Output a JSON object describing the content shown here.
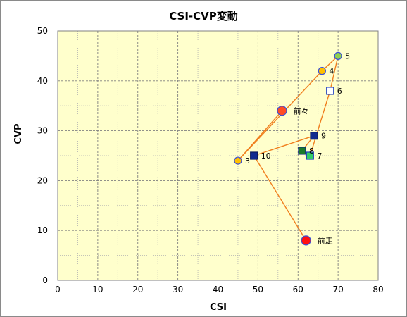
{
  "chart_data": {
    "type": "scatter",
    "title": "CSI-CVP変動",
    "xlabel": "CSI",
    "ylabel": "CVP",
    "xlim": [
      0,
      80
    ],
    "ylim": [
      0,
      50
    ],
    "xticks": [
      0,
      10,
      20,
      30,
      40,
      50,
      60,
      70,
      80
    ],
    "yticks": [
      0,
      10,
      20,
      30,
      40,
      50
    ],
    "grid": true,
    "plot_background": "#ffffcc",
    "grid_color": "#808080",
    "line_color": "#f07f1e",
    "points": [
      {
        "label": "前々",
        "x": 56,
        "y": 34,
        "marker": "circle",
        "fill": "#ff4d24",
        "stroke": "#3a4fd6"
      },
      {
        "label": "3",
        "x": 45,
        "y": 24,
        "marker": "circle",
        "fill": "#ffc000",
        "stroke": "#3a4fd6"
      },
      {
        "label": "4",
        "x": 66,
        "y": 42,
        "marker": "circle",
        "fill": "#ffc000",
        "stroke": "#3a4fd6"
      },
      {
        "label": "5",
        "x": 70,
        "y": 45,
        "marker": "circle",
        "fill": "#92d050",
        "stroke": "#3a4fd6"
      },
      {
        "label": "6",
        "x": 68,
        "y": 38,
        "marker": "square",
        "fill": "#ffffff",
        "stroke": "#1f3fbf"
      },
      {
        "label": "7",
        "x": 63,
        "y": 25,
        "marker": "square",
        "fill": "#33cc66",
        "stroke": "#1f3fbf"
      },
      {
        "label": "8",
        "x": 61,
        "y": 26,
        "marker": "square",
        "fill": "#1a7a2a",
        "stroke": "#0d2a80"
      },
      {
        "label": "9",
        "x": 64,
        "y": 29,
        "marker": "square",
        "fill": "#102a8f",
        "stroke": "#0a1a5c"
      },
      {
        "label": "10",
        "x": 49,
        "y": 25,
        "marker": "square",
        "fill": "#102a8f",
        "stroke": "#0a1a5c"
      },
      {
        "label": "前走",
        "x": 62,
        "y": 8,
        "marker": "circle",
        "fill": "#ff1010",
        "stroke": "#3a4fd6"
      }
    ]
  }
}
